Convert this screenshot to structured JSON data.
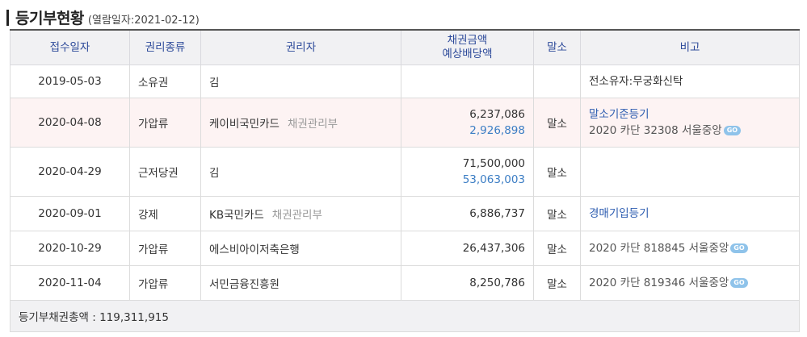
{
  "heading": {
    "title": "등기부현황",
    "date_label": "(열람일자:2021-02-12)"
  },
  "columns": {
    "date": "접수일자",
    "type": "권리종류",
    "holder": "권리자",
    "amount": "채권금액\n예상배당액",
    "cancel": "말소",
    "note": "비고"
  },
  "rows": [
    {
      "date": "2019-05-03",
      "type": "소유권",
      "holder": "김",
      "org": "",
      "amount": "",
      "dividend": "",
      "cancel": "",
      "note_link": "",
      "note_text": "전소유자:무궁화신탁",
      "go": ""
    },
    {
      "date": "2020-04-08",
      "type": "가압류",
      "holder": "케이비국민카드",
      "org": "채권관리부",
      "amount": "6,237,086",
      "dividend": "2,926,898",
      "cancel": "말소",
      "note_link": "말소기준등기",
      "note_text": "2020 카단 32308 서울중앙",
      "go": "GO"
    },
    {
      "date": "2020-04-29",
      "type": "근저당권",
      "holder": "김",
      "org": "",
      "amount": "71,500,000",
      "dividend": "53,063,003",
      "cancel": "말소",
      "note_link": "",
      "note_text": "",
      "go": ""
    },
    {
      "date": "2020-09-01",
      "type": "강제",
      "holder": "KB국민카드",
      "org": "채권관리부",
      "amount": "6,886,737",
      "dividend": "",
      "cancel": "말소",
      "note_link": "경매기입등기",
      "note_text": "",
      "go": ""
    },
    {
      "date": "2020-10-29",
      "type": "가압류",
      "holder": "에스비아이저축은행",
      "org": "",
      "amount": "26,437,306",
      "dividend": "",
      "cancel": "말소",
      "note_link": "",
      "note_text": "2020 카단 818845 서울중앙",
      "go": "GO"
    },
    {
      "date": "2020-11-04",
      "type": "가압류",
      "holder": "서민금융진흥원",
      "org": "",
      "amount": "8,250,786",
      "dividend": "",
      "cancel": "말소",
      "note_link": "",
      "note_text": "2020 카단 819346 서울중앙",
      "go": "GO"
    }
  ],
  "total": {
    "label": "등기부채권총액 : 119,311,915"
  },
  "colors": {
    "header_text": "#2d4a9a",
    "highlight_row": "#fdf3f3",
    "dividend": "#3b7dc4",
    "go_badge": "#8fc3ea"
  }
}
